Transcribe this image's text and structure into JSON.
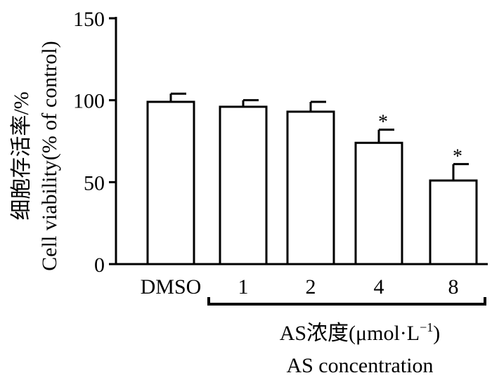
{
  "chart_data": {
    "type": "bar",
    "categories": [
      "DMSO",
      "1",
      "2",
      "4",
      "8"
    ],
    "values": [
      99,
      96,
      93,
      74,
      51
    ],
    "errors": [
      5,
      4,
      6,
      8,
      10
    ],
    "significance": [
      "",
      "",
      "",
      "*",
      "*"
    ],
    "ylim": [
      0,
      150
    ],
    "yticks": [
      0,
      50,
      100,
      150
    ],
    "ylabel": {
      "line1": "细胞存活率/%",
      "line2": "Cell viability(% of control)"
    },
    "xlabel": {
      "line1_main": "AS浓度(μmol·L",
      "line1_sup": "−1",
      "line1_end": ")",
      "line2": "AS concentration"
    },
    "bracket_groups": [
      "1",
      "2",
      "4",
      "8"
    ],
    "colors": {
      "bar_fill": "#ffffff",
      "stroke": "#000000"
    }
  }
}
